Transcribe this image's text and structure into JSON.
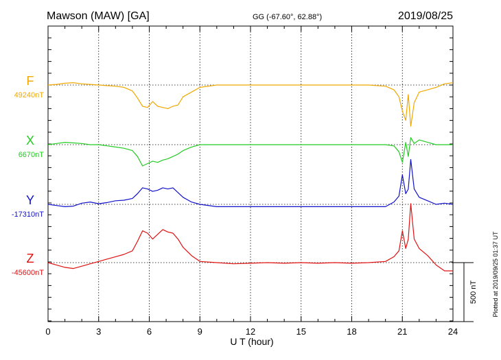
{
  "header": {
    "station": "Mawson (MAW)  [GA]",
    "coords": "GG (-67.60°,  62.88°)",
    "date": "2019/08/25"
  },
  "footer_note": "Plotted at 2019/09/25 01:37 UT",
  "chart_data": {
    "type": "line",
    "xlabel": "U T (hour)",
    "xlim": [
      0,
      24
    ],
    "xticks": [
      "0",
      "3",
      "6",
      "9",
      "12",
      "15",
      "18",
      "21",
      "24"
    ],
    "grid": true,
    "scale_bar": {
      "label": "500 nT",
      "value_nT": 500
    },
    "series": [
      {
        "name": "F",
        "baseline_label": "49240nT",
        "color": "#f0a800",
        "x": [
          0,
          0.5,
          1,
          1.5,
          2,
          2.5,
          3,
          3.5,
          4,
          4.5,
          5,
          5.3,
          5.6,
          5.9,
          6.2,
          6.5,
          6.8,
          7.1,
          7.4,
          7.7,
          8,
          8.5,
          9,
          10,
          11,
          12,
          13,
          14,
          15,
          16,
          17,
          18,
          19,
          20,
          20.5,
          20.8,
          21,
          21.2,
          21.35,
          21.5,
          21.7,
          22,
          22.5,
          23,
          23.5,
          24
        ],
        "values": [
          0,
          5,
          15,
          20,
          10,
          5,
          0,
          -5,
          -10,
          -20,
          -50,
          -110,
          -180,
          -190,
          -140,
          -180,
          -190,
          -200,
          -180,
          -170,
          -100,
          -60,
          -20,
          0,
          0,
          0,
          0,
          0,
          0,
          0,
          0,
          0,
          0,
          -10,
          -40,
          -100,
          -220,
          -300,
          -80,
          -350,
          -150,
          -60,
          -40,
          -20,
          10,
          20
        ]
      },
      {
        "name": "X",
        "baseline_label": "6670nT",
        "color": "#22cc22",
        "x": [
          0,
          0.5,
          1,
          1.5,
          2,
          2.5,
          3,
          3.5,
          4,
          4.5,
          5,
          5.3,
          5.6,
          5.9,
          6.2,
          6.5,
          6.8,
          7.1,
          7.4,
          7.7,
          8,
          8.5,
          9,
          10,
          11,
          12,
          13,
          14,
          15,
          16,
          17,
          18,
          19,
          20,
          20.5,
          20.8,
          21,
          21.2,
          21.35,
          21.5,
          21.7,
          22,
          22.5,
          23,
          23.5,
          24
        ],
        "values": [
          0,
          10,
          20,
          15,
          10,
          0,
          0,
          -10,
          -20,
          -30,
          -50,
          -100,
          -180,
          -160,
          -140,
          -150,
          -130,
          -120,
          -100,
          -80,
          -50,
          -20,
          0,
          0,
          0,
          0,
          0,
          0,
          0,
          0,
          0,
          0,
          0,
          0,
          -10,
          -60,
          -150,
          20,
          -100,
          60,
          10,
          40,
          20,
          0,
          0,
          0
        ]
      },
      {
        "name": "Y",
        "baseline_label": "-17310nT",
        "color": "#1010cc",
        "x": [
          0,
          0.5,
          1,
          1.5,
          2,
          2.5,
          3,
          3.5,
          4,
          4.5,
          5,
          5.3,
          5.6,
          5.9,
          6.2,
          6.5,
          6.8,
          7.1,
          7.4,
          7.7,
          8,
          8.5,
          9,
          10,
          11,
          12,
          13,
          14,
          15,
          16,
          17,
          18,
          19,
          20,
          20.5,
          20.8,
          21,
          21.2,
          21.35,
          21.5,
          21.7,
          22,
          22.5,
          23,
          23.5,
          24
        ],
        "values": [
          0,
          -10,
          -20,
          -15,
          10,
          20,
          5,
          15,
          30,
          35,
          50,
          90,
          140,
          130,
          110,
          120,
          140,
          130,
          140,
          100,
          60,
          20,
          0,
          -20,
          -20,
          -20,
          -20,
          -20,
          -20,
          -20,
          -20,
          -20,
          -20,
          -20,
          20,
          70,
          250,
          90,
          130,
          380,
          130,
          60,
          30,
          0,
          10,
          0
        ]
      },
      {
        "name": "Z",
        "baseline_label": "-45600nT",
        "color": "#e01010",
        "x": [
          0,
          0.5,
          1,
          1.5,
          2,
          2.5,
          3,
          3.5,
          4,
          4.5,
          5,
          5.3,
          5.6,
          5.9,
          6.2,
          6.5,
          6.8,
          7.1,
          7.4,
          7.7,
          8,
          8.5,
          9,
          10,
          11,
          12,
          13,
          14,
          15,
          16,
          17,
          18,
          19,
          20,
          20.5,
          20.8,
          21,
          21.2,
          21.35,
          21.5,
          21.7,
          22,
          22.5,
          23,
          23.5,
          24
        ],
        "values": [
          0,
          -20,
          -40,
          -50,
          -30,
          -10,
          10,
          30,
          50,
          70,
          100,
          180,
          270,
          250,
          200,
          240,
          280,
          260,
          250,
          200,
          130,
          60,
          10,
          0,
          -10,
          -5,
          0,
          -5,
          0,
          -5,
          0,
          -5,
          0,
          10,
          50,
          100,
          270,
          120,
          200,
          500,
          200,
          120,
          60,
          -20,
          -70,
          -70
        ]
      }
    ]
  }
}
